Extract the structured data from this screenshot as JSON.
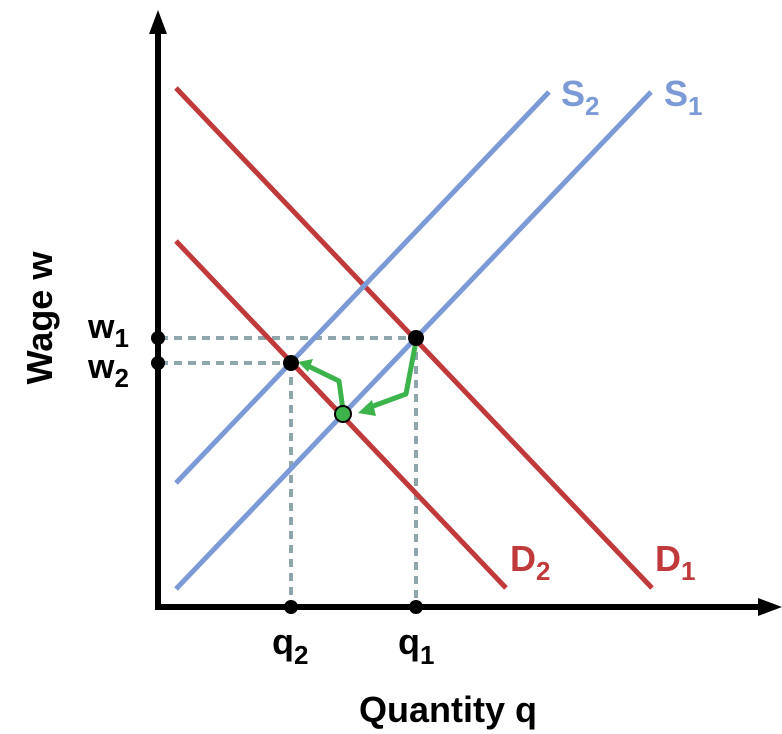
{
  "axes": {
    "x_label": "Quantity q",
    "y_label": "Wage w"
  },
  "colors": {
    "supply": "#7b9ad6",
    "demand": "#c0393b",
    "guide": "#8fa6ad",
    "arrow": "#3cb44b",
    "axis": "#000000"
  },
  "curves": {
    "s1": {
      "letter": "S",
      "sub": "1"
    },
    "s2": {
      "letter": "S",
      "sub": "2"
    },
    "d1": {
      "letter": "D",
      "sub": "1"
    },
    "d2": {
      "letter": "D",
      "sub": "2"
    }
  },
  "ticks": {
    "w1": {
      "letter": "w",
      "sub": "1"
    },
    "w2": {
      "letter": "w",
      "sub": "2"
    },
    "q1": {
      "letter": "q",
      "sub": "1"
    },
    "q2": {
      "letter": "q",
      "sub": "2"
    }
  }
}
